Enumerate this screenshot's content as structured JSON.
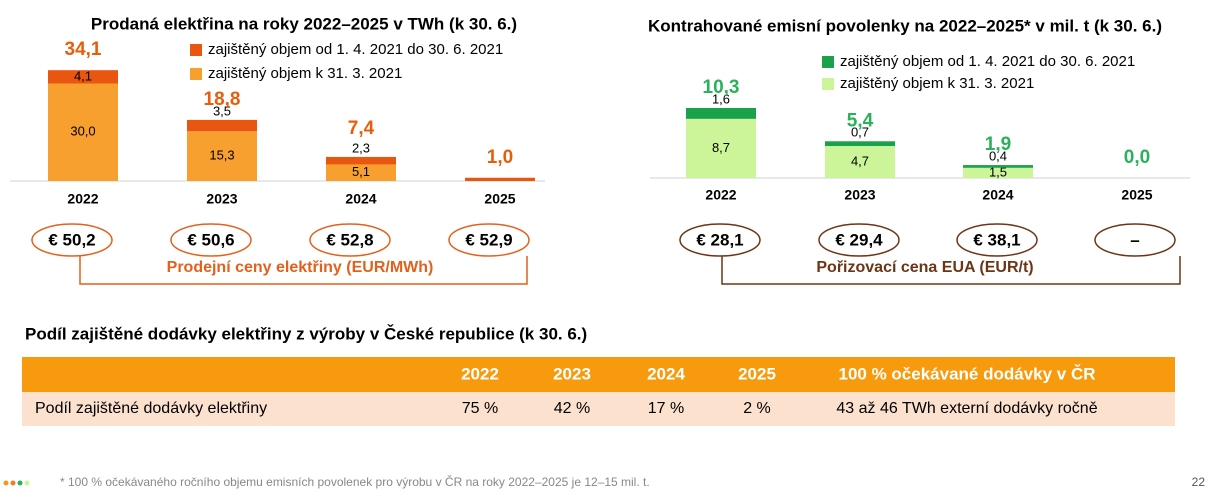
{
  "chart_data": [
    {
      "type": "stacked-bar",
      "title": "Prodaná elektřina na roky 2022–2025 v TWh (k 30. 6.)",
      "categories": [
        "2022",
        "2023",
        "2024",
        "2025"
      ],
      "series": [
        {
          "name": "zajištěný objem k 31. 3. 2021",
          "color": "#f7a030",
          "values": [
            30.0,
            15.3,
            5.1,
            0
          ],
          "value_labels": [
            "30,0",
            "15,3",
            "5,1",
            null
          ]
        },
        {
          "name": "zajištěný objem od 1. 4. 2021 do 30. 6. 2021",
          "color": "#e8560f",
          "values": [
            4.1,
            3.5,
            2.3,
            1.0
          ],
          "value_labels": [
            "4,1",
            "3,5",
            "2,3",
            null
          ]
        }
      ],
      "totals": [
        34.1,
        18.8,
        7.4,
        1.0
      ],
      "total_labels": [
        "34,1",
        "18,8",
        "7,4",
        "1,0"
      ],
      "total_color": "#e85d0c",
      "ylim": [
        0,
        40
      ],
      "price_labels": [
        "€ 50,2",
        "€ 50,6",
        "€ 52,8",
        "€ 52,9"
      ],
      "price_caption": "Prodejní ceny elektřiny (EUR/MWh)",
      "price_color": "#e2611c"
    },
    {
      "type": "stacked-bar",
      "title": "Kontrahované emisní povolenky na 2022–2025* v mil. t (k 30. 6.)",
      "categories": [
        "2022",
        "2023",
        "2024",
        "2025"
      ],
      "series": [
        {
          "name": "zajištěný objem k 31. 3. 2021",
          "color": "#ccf59a",
          "values": [
            8.7,
            4.7,
            1.5,
            0
          ],
          "value_labels": [
            "8,7",
            "4,7",
            "1,5",
            null
          ]
        },
        {
          "name": "zajištěný objem od 1. 4. 2021 do 30. 6. 2021",
          "color": "#1aa14b",
          "values": [
            1.6,
            0.7,
            0.4,
            0
          ],
          "value_labels": [
            "1,6",
            "0,7",
            "0,4",
            null
          ]
        }
      ],
      "totals": [
        10.3,
        5.4,
        1.9,
        0.0
      ],
      "total_labels": [
        "10,3",
        "5,4",
        "1,9",
        "0,0"
      ],
      "total_color": "#2bb159",
      "ylim": [
        0,
        15
      ],
      "price_labels": [
        "€ 28,1",
        "€ 29,4",
        "€ 38,1",
        "–"
      ],
      "price_caption": "Pořizovací cena EUA (EUR/t)",
      "price_color": "#6e3415"
    }
  ],
  "table": {
    "title": "Podíl zajištěné dodávky elektřiny z výroby v České republice (k 30. 6.)",
    "columns": [
      "2022",
      "2023",
      "2024",
      "2025",
      "100 % očekávané dodávky v ČR"
    ],
    "rows": [
      [
        "Podíl zajištěné dodávky elektřiny",
        "75 %",
        "42 %",
        "17 %",
        "2 %",
        "43 až 46 TWh externí dodávky ročně"
      ]
    ]
  },
  "footnote": "* 100 % očekávaného ročního objemu emisních povolenek pro výrobu v ČR na roky 2022–2025 je 12–15 mil. t.",
  "page_number": "22"
}
